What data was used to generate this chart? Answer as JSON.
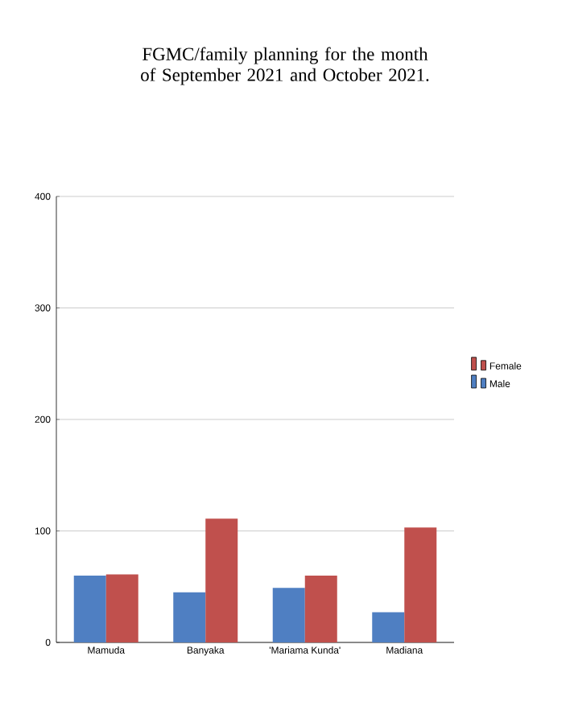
{
  "chart_data": {
    "type": "bar",
    "title": "FGMC/family planning for the month of September 2021 and October 2021.",
    "categories": [
      "Mamuda",
      "Banyaka",
      "'Mariama Kunda'",
      "Madiana"
    ],
    "series": [
      {
        "name": "Male",
        "color": "#4f7fc2",
        "values": [
          60,
          45,
          49,
          27
        ]
      },
      {
        "name": "Female",
        "color": "#c0504d",
        "values": [
          61,
          111,
          60,
          103
        ]
      }
    ],
    "ylim": [
      0,
      400
    ],
    "yticks": [
      0,
      100,
      200,
      300,
      400
    ],
    "grid": "y",
    "legend": "right"
  }
}
